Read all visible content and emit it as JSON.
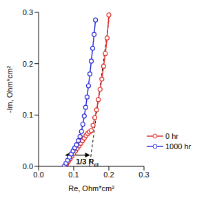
{
  "chart_data": {
    "type": "scatter",
    "x_label": "Re, Ohm*cm²",
    "y_label": "-Im, Ohm*cm²",
    "xlim": [
      0,
      0.3
    ],
    "ylim": [
      0,
      0.3
    ],
    "xticks": [
      {
        "value": 0,
        "label": "0.0"
      },
      {
        "value": 0.1,
        "label": "0.1"
      },
      {
        "value": 0.2,
        "label": "0.2"
      },
      {
        "value": 0.3,
        "label": "0.3"
      }
    ],
    "yticks": [
      {
        "value": 0,
        "label": "0.0"
      },
      {
        "value": 0.1,
        "label": "0.1"
      },
      {
        "value": 0.2,
        "label": "0.2"
      },
      {
        "value": 0.3,
        "label": "0.3"
      }
    ],
    "legend": "lower right",
    "marker": "circle",
    "line_style": "solid",
    "series": [
      {
        "name": "0 hr",
        "color": "#e0302c",
        "x": [
          0.075,
          0.08,
          0.085,
          0.09,
          0.095,
          0.1,
          0.105,
          0.11,
          0.115,
          0.12,
          0.125,
          0.13,
          0.135,
          0.14,
          0.145,
          0.15,
          0.155,
          0.16,
          0.165,
          0.17,
          0.175,
          0.18,
          0.185,
          0.19,
          0.195,
          0.2
        ],
        "values": [
          0,
          0.005,
          0.01,
          0.015,
          0.02,
          0.025,
          0.03,
          0.035,
          0.04,
          0.045,
          0.05,
          0.055,
          0.06,
          0.064,
          0.067,
          0.07,
          0.08,
          0.095,
          0.11,
          0.13,
          0.15,
          0.17,
          0.195,
          0.22,
          0.25,
          0.295
        ]
      },
      {
        "name": "1000 hr",
        "color": "#2b2bd9",
        "x": [
          0.073,
          0.078,
          0.083,
          0.088,
          0.093,
          0.098,
          0.103,
          0.108,
          0.113,
          0.118,
          0.122,
          0.126,
          0.13,
          0.134,
          0.138,
          0.142,
          0.146,
          0.15,
          0.154,
          0.158,
          0.162
        ],
        "values": [
          0,
          0.006,
          0.012,
          0.018,
          0.024,
          0.03,
          0.036,
          0.042,
          0.05,
          0.058,
          0.068,
          0.082,
          0.098,
          0.115,
          0.135,
          0.157,
          0.18,
          0.205,
          0.23,
          0.257,
          0.285
        ]
      }
    ],
    "annotations": [
      {
        "text": "1/3 R",
        "subscript": "cl",
        "x": [
          0.077,
          0.145
        ],
        "y": [
          0.022,
          0.022
        ]
      },
      {
        "line_style": "dashed",
        "x": [
          0.145,
          0.203
        ],
        "y": [
          0,
          0.3
        ]
      }
    ]
  }
}
